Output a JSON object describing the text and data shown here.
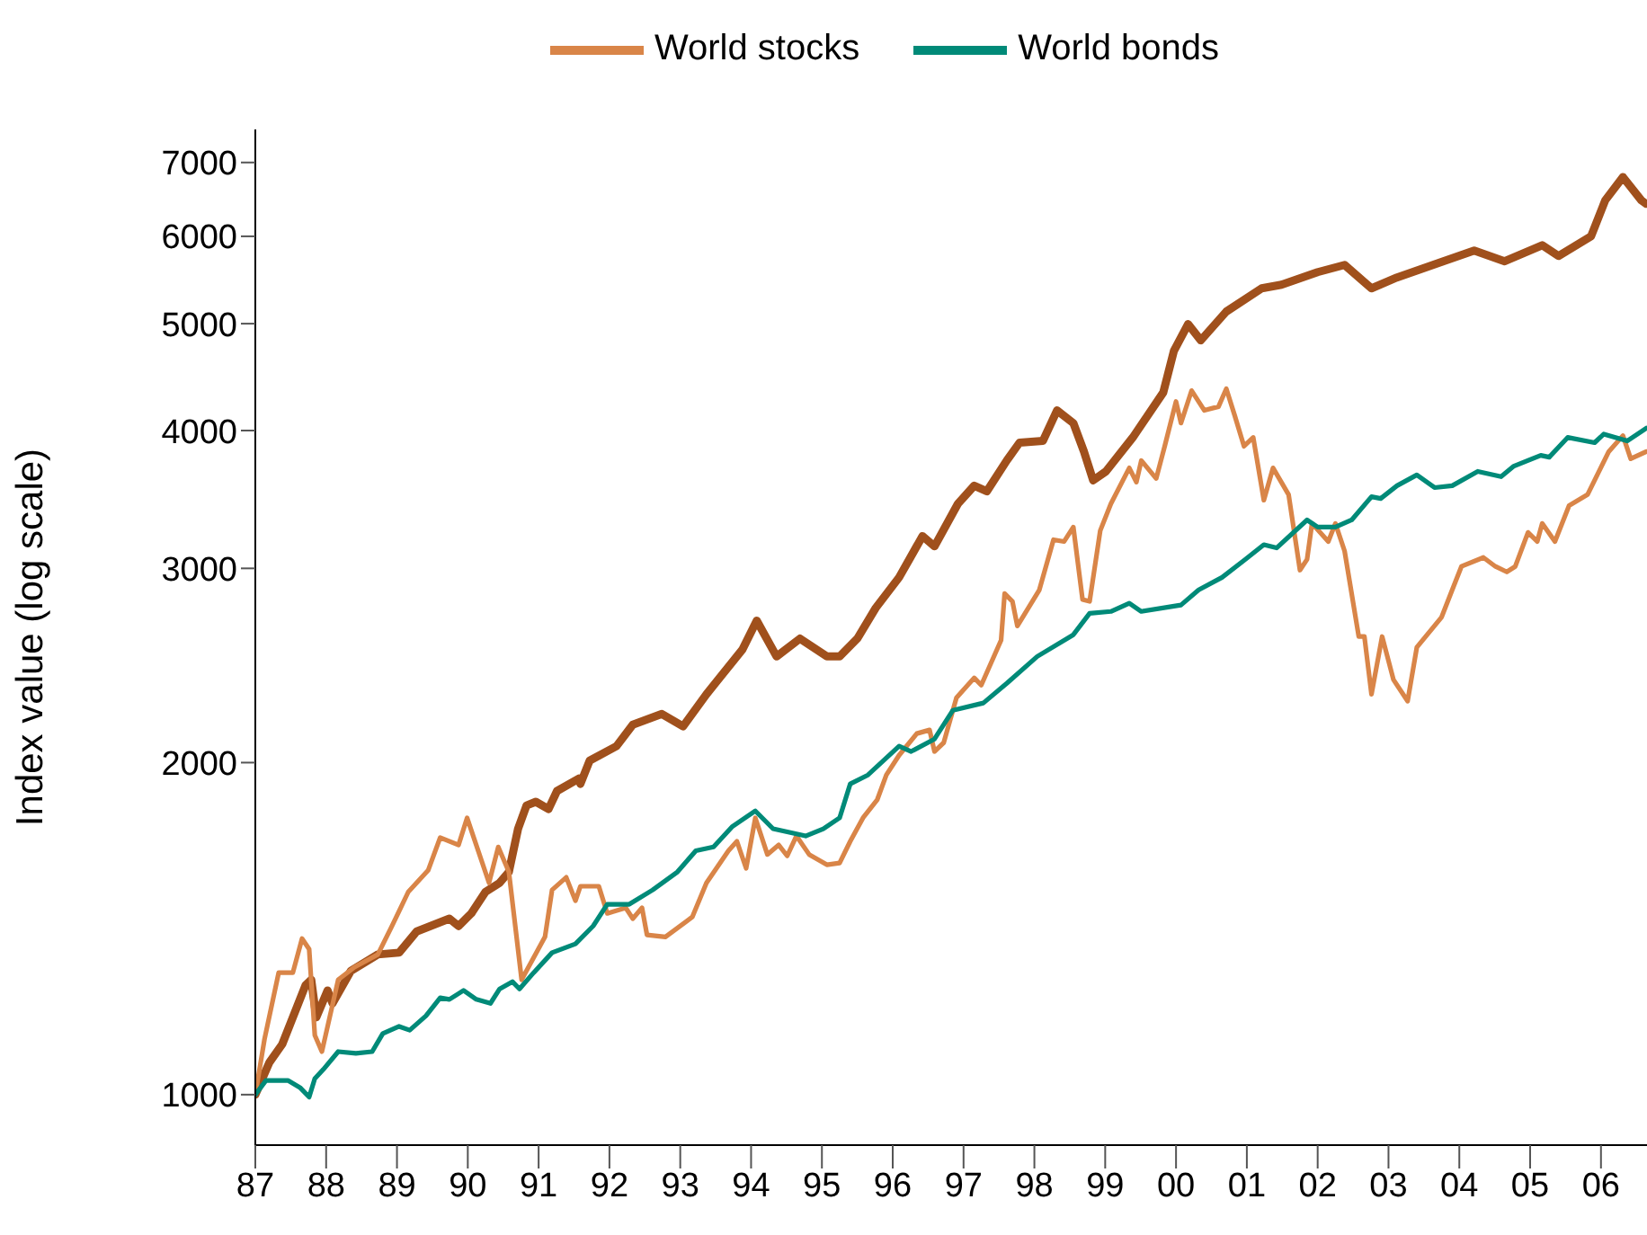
{
  "chart_data": {
    "type": "line",
    "ylabel": "Index value (log scale)",
    "log": "y",
    "legend": "top",
    "marker": "none",
    "line_style": "solid",
    "xlim": [
      1987,
      2006.65
    ],
    "xticks": [
      {
        "value": 1987,
        "label": "87"
      },
      {
        "value": 1988,
        "label": "88"
      },
      {
        "value": 1989,
        "label": "89"
      },
      {
        "value": 1990,
        "label": "90"
      },
      {
        "value": 1991,
        "label": "91"
      },
      {
        "value": 1992,
        "label": "92"
      },
      {
        "value": 1993,
        "label": "93"
      },
      {
        "value": 1994,
        "label": "94"
      },
      {
        "value": 1995,
        "label": "95"
      },
      {
        "value": 1996,
        "label": "96"
      },
      {
        "value": 1997,
        "label": "97"
      },
      {
        "value": 1998,
        "label": "98"
      },
      {
        "value": 1999,
        "label": "99"
      },
      {
        "value": 2000,
        "label": "00"
      },
      {
        "value": 2001,
        "label": "01"
      },
      {
        "value": 2002,
        "label": "02"
      },
      {
        "value": 2003,
        "label": "03"
      },
      {
        "value": 2004,
        "label": "04"
      },
      {
        "value": 2005,
        "label": "05"
      },
      {
        "value": 2006,
        "label": "06"
      }
    ],
    "ylim": [
      900,
      7500
    ],
    "yticks": [
      1000,
      2000,
      3000,
      4000,
      5000,
      6000,
      7000
    ],
    "series": [
      {
        "color": "#a0501c",
        "x": [
          1987.0,
          1987.2,
          1987.38,
          1987.71,
          1987.79,
          1987.86,
          1988.02,
          1988.09,
          1988.35,
          1988.73,
          1989.03,
          1989.28,
          1989.74,
          1989.87,
          1990.05,
          1990.25,
          1990.45,
          1990.58,
          1990.71,
          1990.83,
          1990.96,
          1991.14,
          1991.26,
          1991.57,
          1991.59,
          1991.72,
          1992.1,
          1992.33,
          1992.74,
          1993.04,
          1993.37,
          1993.88,
          1994.08,
          1994.36,
          1994.69,
          1995.07,
          1995.25,
          1995.5,
          1995.76,
          1996.09,
          1996.42,
          1996.59,
          1996.92,
          1997.15,
          1997.33,
          1997.61,
          1997.79,
          1998.12,
          1998.32,
          1998.55,
          1998.7,
          1998.83,
          1999.01,
          1999.39,
          1999.82,
          1999.97,
          2000.17,
          2000.35,
          2000.71,
          2001.21,
          2001.49,
          2002.0,
          2002.38,
          2002.76,
          2003.12,
          2003.7,
          2004.21,
          2004.64,
          2005.17,
          2005.4,
          2005.86,
          2006.06,
          2006.31,
          2006.57,
          2006.64
        ],
        "values": [
          1000,
          1070,
          1111,
          1257,
          1271,
          1175,
          1243,
          1210,
          1295,
          1340,
          1345,
          1406,
          1444,
          1422,
          1460,
          1527,
          1556,
          1592,
          1742,
          1829,
          1843,
          1815,
          1885,
          1935,
          1913,
          2008,
          2070,
          2165,
          2214,
          2157,
          2307,
          2534,
          2690,
          2496,
          2591,
          2496,
          2496,
          2591,
          2762,
          2944,
          3209,
          3141,
          3433,
          3565,
          3524,
          3757,
          3900,
          3914,
          4172,
          4063,
          3828,
          3605,
          3673,
          3943,
          4331,
          4723,
          4995,
          4829,
          5128,
          5383,
          5424,
          5568,
          5652,
          5383,
          5506,
          5673,
          5824,
          5695,
          5890,
          5759,
          6000,
          6468,
          6791,
          6468,
          6420
        ]
      },
      {
        "name": "World stocks",
        "color": "#d98548",
        "x": [
          1987.0,
          1987.13,
          1987.33,
          1987.53,
          1987.66,
          1987.76,
          1987.84,
          1987.94,
          1988.17,
          1988.4,
          1988.73,
          1988.93,
          1989.16,
          1989.44,
          1989.61,
          1989.87,
          1989.99,
          1990.3,
          1990.43,
          1990.58,
          1990.76,
          1991.09,
          1991.19,
          1991.39,
          1991.52,
          1991.59,
          1991.85,
          1991.97,
          1992.23,
          1992.33,
          1992.46,
          1992.53,
          1992.79,
          1993.17,
          1993.37,
          1993.68,
          1993.8,
          1993.93,
          1994.06,
          1994.23,
          1994.39,
          1994.51,
          1994.64,
          1994.82,
          1995.07,
          1995.25,
          1995.4,
          1995.58,
          1995.78,
          1995.91,
          1996.09,
          1996.34,
          1996.52,
          1996.59,
          1996.72,
          1996.9,
          1997.15,
          1997.25,
          1997.53,
          1997.58,
          1997.69,
          1997.76,
          1998.07,
          1998.27,
          1998.42,
          1998.55,
          1998.68,
          1998.78,
          1998.93,
          1999.08,
          1999.34,
          1999.44,
          1999.51,
          1999.72,
          1999.84,
          2000.0,
          2000.07,
          2000.22,
          2000.4,
          2000.6,
          2000.71,
          2000.83,
          2000.96,
          2001.09,
          2001.24,
          2001.37,
          2001.59,
          2001.75,
          2001.85,
          2001.92,
          2002.15,
          2002.25,
          2002.38,
          2002.58,
          2002.66,
          2002.76,
          2002.91,
          2003.07,
          2003.27,
          2003.4,
          2003.75,
          2003.9,
          2004.03,
          2004.34,
          2004.51,
          2004.67,
          2004.79,
          2004.97,
          2005.1,
          2005.17,
          2005.35,
          2005.55,
          2005.81,
          2006.11,
          2006.31,
          2006.42,
          2006.64
        ],
        "values": [
          1000,
          1123,
          1290,
          1290,
          1385,
          1355,
          1132,
          1094,
          1271,
          1305,
          1340,
          1422,
          1527,
          1597,
          1710,
          1684,
          1782,
          1556,
          1677,
          1592,
          1271,
          1390,
          1533,
          1574,
          1499,
          1545,
          1545,
          1460,
          1477,
          1444,
          1477,
          1396,
          1390,
          1449,
          1556,
          1664,
          1697,
          1604,
          1782,
          1651,
          1684,
          1646,
          1716,
          1651,
          1616,
          1622,
          1697,
          1782,
          1850,
          1949,
          2031,
          2125,
          2141,
          2047,
          2085,
          2290,
          2387,
          2351,
          2582,
          2846,
          2800,
          2660,
          2868,
          3185,
          3173,
          3270,
          2811,
          2800,
          3246,
          3433,
          3700,
          3592,
          3757,
          3619,
          3871,
          4250,
          4063,
          4348,
          4172,
          4205,
          4365,
          4125,
          3871,
          3943,
          3459,
          3700,
          3499,
          2989,
          3057,
          3295,
          3173,
          3295,
          3111,
          2602,
          2602,
          2307,
          2602,
          2378,
          2274,
          2544,
          2710,
          2868,
          3012,
          3069,
          3012,
          2978,
          3012,
          3234,
          3173,
          3295,
          3173,
          3420,
          3499,
          3828,
          3958,
          3771,
          3828
        ]
      },
      {
        "name": "World bonds",
        "color": "#008a78",
        "x": [
          1987.0,
          1987.15,
          1987.46,
          1987.63,
          1987.76,
          1987.84,
          1987.96,
          1988.17,
          1988.42,
          1988.65,
          1988.8,
          1989.03,
          1989.18,
          1989.41,
          1989.61,
          1989.74,
          1989.94,
          1990.12,
          1990.32,
          1990.45,
          1990.63,
          1990.73,
          1990.93,
          1991.19,
          1991.52,
          1991.77,
          1991.97,
          1992.28,
          1992.61,
          1992.96,
          1993.22,
          1993.47,
          1993.73,
          1994.06,
          1994.31,
          1994.77,
          1995.02,
          1995.25,
          1995.4,
          1995.65,
          1996.09,
          1996.26,
          1996.59,
          1996.85,
          1997.28,
          1997.61,
          1998.04,
          1998.55,
          1998.78,
          1999.08,
          1999.34,
          1999.51,
          2000.07,
          2000.32,
          2000.65,
          2000.98,
          2001.24,
          2001.42,
          2001.85,
          2002.0,
          2002.25,
          2002.48,
          2002.76,
          2002.89,
          2003.12,
          2003.4,
          2003.65,
          2003.9,
          2004.26,
          2004.59,
          2004.77,
          2005.15,
          2005.27,
          2005.53,
          2005.91,
          2006.04,
          2006.37,
          2006.64
        ],
        "values": [
          1000,
          1030,
          1030,
          1015,
          995,
          1034,
          1054,
          1094,
          1090,
          1094,
          1136,
          1153,
          1144,
          1179,
          1224,
          1220,
          1243,
          1220,
          1210,
          1247,
          1266,
          1247,
          1290,
          1345,
          1370,
          1422,
          1488,
          1488,
          1533,
          1592,
          1664,
          1677,
          1749,
          1808,
          1742,
          1716,
          1742,
          1782,
          1913,
          1949,
          2070,
          2047,
          2101,
          2231,
          2265,
          2360,
          2496,
          2612,
          2731,
          2742,
          2790,
          2742,
          2779,
          2868,
          2944,
          3057,
          3152,
          3131,
          3319,
          3270,
          3270,
          3319,
          3484,
          3471,
          3565,
          3646,
          3551,
          3565,
          3673,
          3633,
          3714,
          3798,
          3784,
          3943,
          3900,
          3971,
          3914,
          4020
        ]
      }
    ]
  }
}
